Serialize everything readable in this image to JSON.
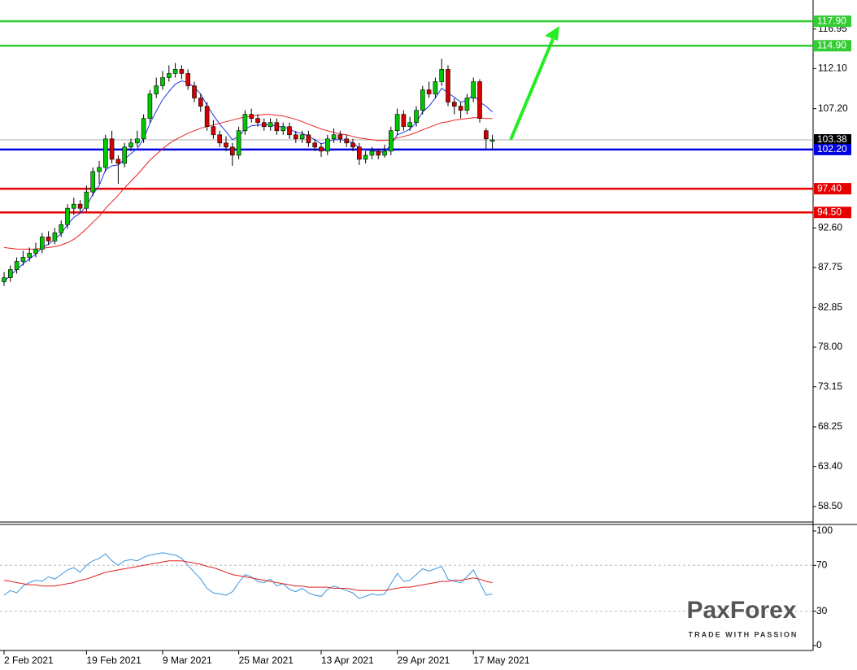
{
  "chart_data": [
    {
      "type": "candlestick",
      "categories": [
        "2 Feb 2021",
        null,
        null,
        null,
        null,
        null,
        null,
        null,
        null,
        null,
        null,
        null,
        null,
        "19 Feb 2021",
        null,
        null,
        null,
        null,
        null,
        null,
        null,
        null,
        null,
        null,
        null,
        "9 Mar 2021",
        null,
        null,
        null,
        null,
        null,
        null,
        null,
        null,
        null,
        null,
        null,
        "25 Mar 2021",
        null,
        null,
        null,
        null,
        null,
        null,
        null,
        null,
        null,
        null,
        null,
        null,
        "13 Apr 2021",
        null,
        null,
        null,
        null,
        null,
        null,
        null,
        null,
        null,
        null,
        null,
        "29 Apr 2021",
        null,
        null,
        null,
        null,
        null,
        null,
        null,
        null,
        null,
        null,
        null,
        "17 May 2021",
        null,
        null,
        null
      ],
      "open": [
        86.0,
        86.5,
        87.5,
        88.5,
        89.0,
        89.5,
        90.0,
        91.5,
        91.0,
        92.0,
        93.0,
        95.0,
        95.5,
        95.0,
        97.0,
        99.5,
        100.0,
        103.5,
        101.0,
        100.5,
        102.5,
        103.0,
        103.5,
        106.0,
        109.0,
        110.0,
        111.0,
        111.5,
        112.0,
        111.5,
        110.0,
        108.5,
        107.5,
        105.0,
        104.0,
        103.0,
        102.5,
        101.5,
        104.5,
        106.5,
        106.0,
        105.5,
        105.0,
        105.5,
        104.5,
        105.0,
        104.0,
        103.5,
        104.0,
        103.0,
        102.5,
        102.0,
        103.5,
        104.0,
        103.5,
        103.0,
        102.5,
        101.0,
        101.5,
        102.0,
        101.5,
        102.0,
        104.5,
        106.5,
        105.0,
        105.5,
        107.0,
        109.5,
        109.0,
        110.5,
        112.0,
        108.0,
        107.5,
        107.0,
        108.5,
        110.5,
        104.5,
        103.2
      ],
      "high": [
        87.2,
        88.0,
        89.0,
        89.8,
        90.2,
        90.8,
        92.0,
        92.2,
        92.6,
        93.5,
        95.5,
        96.3,
        96.0,
        97.8,
        100.0,
        100.8,
        104.0,
        104.5,
        101.5,
        103.0,
        103.5,
        104.5,
        106.5,
        109.5,
        111.0,
        111.8,
        112.5,
        112.8,
        112.5,
        112.0,
        110.5,
        109.0,
        108.0,
        105.8,
        104.5,
        103.8,
        103.0,
        105.0,
        107.0,
        107.2,
        106.5,
        106.0,
        106.0,
        106.0,
        105.5,
        105.5,
        104.5,
        104.5,
        104.5,
        103.5,
        103.0,
        104.0,
        104.8,
        104.5,
        104.0,
        103.5,
        103.0,
        102.0,
        102.5,
        102.3,
        102.8,
        105.0,
        107.2,
        107.0,
        106.2,
        107.5,
        110.0,
        110.5,
        111.0,
        113.3,
        112.5,
        108.5,
        108.0,
        109.0,
        111.0,
        110.8,
        104.8,
        104.0
      ],
      "low": [
        85.5,
        86.0,
        87.0,
        88.0,
        88.5,
        89.0,
        89.5,
        90.5,
        90.6,
        91.5,
        92.5,
        94.2,
        94.5,
        94.6,
        96.5,
        98.0,
        99.5,
        100.5,
        98.0,
        100.0,
        102.0,
        102.5,
        103.0,
        105.5,
        108.5,
        109.5,
        110.5,
        111.0,
        110.8,
        109.5,
        108.0,
        106.8,
        104.5,
        103.5,
        102.5,
        102.0,
        100.2,
        101.0,
        104.0,
        105.5,
        105.0,
        104.5,
        104.5,
        104.0,
        104.0,
        103.5,
        103.0,
        103.0,
        102.5,
        102.0,
        101.3,
        101.5,
        103.0,
        103.0,
        102.5,
        102.0,
        100.3,
        100.5,
        101.0,
        101.0,
        101.2,
        101.5,
        104.0,
        104.5,
        104.5,
        105.0,
        106.5,
        108.5,
        108.5,
        110.0,
        107.5,
        106.5,
        106.0,
        106.5,
        108.0,
        105.5,
        102.3,
        102.2
      ],
      "close": [
        86.5,
        87.5,
        88.5,
        89.0,
        89.5,
        90.0,
        91.5,
        91.0,
        92.0,
        93.0,
        95.0,
        95.5,
        95.0,
        97.0,
        99.5,
        100.0,
        103.5,
        101.0,
        100.5,
        102.5,
        103.0,
        103.5,
        106.0,
        109.0,
        110.0,
        111.0,
        111.5,
        112.0,
        111.5,
        110.0,
        108.5,
        107.5,
        105.0,
        104.0,
        103.0,
        102.5,
        101.5,
        104.5,
        106.5,
        106.0,
        105.5,
        105.0,
        105.5,
        104.5,
        105.0,
        104.0,
        103.5,
        104.0,
        103.0,
        102.5,
        102.0,
        103.5,
        104.0,
        103.5,
        103.0,
        102.5,
        101.0,
        101.5,
        102.0,
        101.5,
        102.0,
        104.5,
        106.5,
        105.0,
        105.5,
        107.0,
        109.5,
        109.0,
        110.5,
        112.0,
        108.0,
        107.5,
        107.0,
        108.5,
        110.5,
        106.0,
        103.5,
        103.38
      ],
      "up_color": "#00c800",
      "down_color": "#d40000",
      "overlays": [
        {
          "color": "#1f35e8",
          "values": [
            86.0,
            86.8,
            87.5,
            88.2,
            88.8,
            89.4,
            90.2,
            90.6,
            91.2,
            91.9,
            93.0,
            93.9,
            94.4,
            95.3,
            96.7,
            97.8,
            99.7,
            100.2,
            100.3,
            101.0,
            101.7,
            102.3,
            103.5,
            105.4,
            106.9,
            108.3,
            109.3,
            110.2,
            110.6,
            110.4,
            109.8,
            109.0,
            107.6,
            106.4,
            105.3,
            104.4,
            103.4,
            103.8,
            104.7,
            105.1,
            105.2,
            105.2,
            105.3,
            105.0,
            105.0,
            104.7,
            104.3,
            104.2,
            103.8,
            103.4,
            102.9,
            103.1,
            103.4,
            103.4,
            103.3,
            103.0,
            102.4,
            102.1,
            102.1,
            101.9,
            101.9,
            102.8,
            104.0,
            104.3,
            104.7,
            105.5,
            106.8,
            107.5,
            108.5,
            109.7,
            109.1,
            108.6,
            108.0,
            108.2,
            108.9,
            108.0,
            107.5,
            106.8
          ]
        },
        {
          "color": "#e82020",
          "values": [
            90.2,
            90.1,
            90.0,
            90.0,
            90.0,
            90.0,
            90.1,
            90.2,
            90.3,
            90.5,
            90.8,
            91.2,
            91.8,
            92.5,
            93.3,
            94.0,
            95.0,
            95.8,
            96.6,
            97.5,
            98.3,
            99.1,
            100.0,
            100.9,
            101.6,
            102.3,
            102.9,
            103.4,
            103.8,
            104.2,
            104.5,
            104.8,
            105.0,
            105.2,
            105.4,
            105.6,
            105.8,
            106.0,
            106.2,
            106.3,
            106.4,
            106.5,
            106.5,
            106.4,
            106.3,
            106.1,
            105.9,
            105.6,
            105.3,
            105.0,
            104.7,
            104.5,
            104.3,
            104.1,
            104.0,
            103.8,
            103.6,
            103.5,
            103.4,
            103.3,
            103.3,
            103.4,
            103.6,
            103.8,
            104.0,
            104.3,
            104.6,
            104.9,
            105.2,
            105.5,
            105.6,
            105.8,
            105.9,
            106.0,
            106.1,
            106.1,
            106.0,
            106.0
          ]
        }
      ],
      "levels": [
        {
          "value": 117.9,
          "label": "117.90",
          "color": "#33cc33"
        },
        {
          "value": 114.9,
          "label": "114.90",
          "color": "#33cc33"
        },
        {
          "value": 103.38,
          "color": "#000000",
          "thin": true
        },
        {
          "value": 102.2,
          "label": "102.20",
          "color": "#0000e0"
        },
        {
          "value": 97.4,
          "label": "97.40",
          "color": "#e60000"
        },
        {
          "value": 94.5,
          "label": "94.50",
          "color": "#e60000"
        }
      ],
      "ylim": [
        56.7,
        120.5
      ],
      "yticks": [
        116.95,
        {
          "value": 112.1,
          "label": "112.10"
        },
        {
          "value": 107.2,
          "label": "107.20"
        },
        {
          "value": 92.6,
          "label": "92.60"
        },
        87.75,
        82.85,
        {
          "value": 78.0,
          "label": "78.00"
        },
        73.15,
        68.25,
        {
          "value": 63.4,
          "label": "63.40"
        },
        {
          "value": 58.5,
          "label": "58.50"
        }
      ]
    },
    {
      "type": "line",
      "series": [
        {
          "color": "#3a96e0",
          "values": [
            44,
            48,
            46,
            52,
            55,
            57,
            56,
            60,
            58,
            62,
            66,
            68,
            64,
            70,
            74,
            76,
            80,
            74,
            70,
            74,
            75,
            74,
            77,
            79,
            80,
            81,
            80,
            79,
            76,
            70,
            64,
            58,
            50,
            46,
            45,
            44,
            47,
            55,
            62,
            60,
            56,
            55,
            58,
            52,
            54,
            49,
            47,
            50,
            46,
            44,
            43,
            49,
            52,
            50,
            48,
            46,
            41,
            43,
            45,
            44,
            45,
            54,
            63,
            56,
            57,
            62,
            67,
            65,
            67,
            69,
            58,
            56,
            55,
            60,
            66,
            55,
            44,
            45
          ]
        },
        {
          "color": "#dd2222",
          "values": [
            57,
            56,
            55,
            54,
            53,
            53,
            52,
            52,
            52,
            53,
            54,
            55,
            57,
            58,
            60,
            62,
            64,
            65,
            66,
            67,
            68,
            69,
            70,
            71,
            72,
            73,
            74,
            74,
            74,
            73,
            72,
            71,
            69,
            68,
            66,
            64,
            62,
            61,
            60,
            59,
            58,
            57,
            56,
            55,
            54,
            53,
            52,
            52,
            51,
            51,
            51,
            51,
            50,
            50,
            50,
            49,
            48,
            48,
            48,
            48,
            48,
            49,
            50,
            51,
            51,
            52,
            53,
            54,
            55,
            56,
            56,
            57,
            57,
            58,
            59,
            58,
            56,
            55
          ]
        }
      ],
      "ylim": [
        0,
        100
      ],
      "yticks": [
        100,
        70,
        30,
        0
      ],
      "levels": [
        70,
        30
      ]
    }
  ],
  "logo": {
    "brand": "PaxForex",
    "tagline": "TRADE WITH PASSION"
  }
}
